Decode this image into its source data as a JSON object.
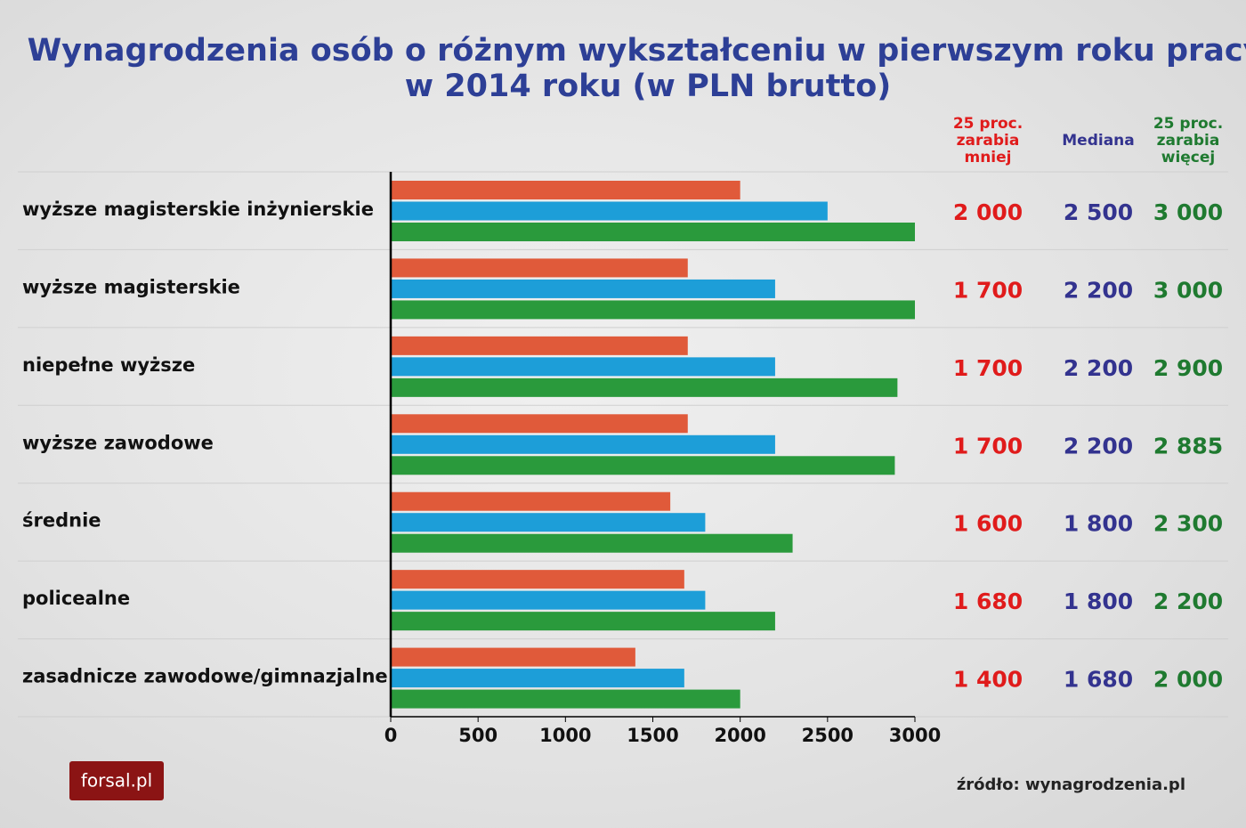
{
  "chart_data": {
    "type": "bar",
    "orientation": "horizontal",
    "title": [
      "Wynagrodzenia osób o różnym wykształceniu w pierwszym roku pracy",
      "w 2014 roku (w PLN brutto)"
    ],
    "categories": [
      "wyższe magisterskie inżynierskie",
      "wyższe magisterskie",
      "niepełne wyższe",
      "wyższe zawodowe",
      "średnie",
      "policealne",
      "zasadnicze zawodowe/gimnazjalne"
    ],
    "series": [
      {
        "name": "25 proc. zarabia mniej",
        "color": "#e05a3a",
        "label_color": "#e01b1b",
        "values": [
          2000,
          1700,
          1700,
          1700,
          1600,
          1680,
          1400
        ],
        "value_labels": [
          "2 000",
          "1 700",
          "1 700",
          "1 700",
          "1 600",
          "1 680",
          "1 400"
        ]
      },
      {
        "name": "Mediana",
        "color": "#1d9ed8",
        "label_color": "#33338f",
        "values": [
          2500,
          2200,
          2200,
          2200,
          1800,
          1800,
          1680
        ],
        "value_labels": [
          "2 500",
          "2 200",
          "2 200",
          "2 200",
          "1 800",
          "1 800",
          "1 680"
        ]
      },
      {
        "name": "25 proc. zarabia więcej",
        "color": "#2a9a3c",
        "label_color": "#1f7a30",
        "values": [
          3000,
          3000,
          2900,
          2885,
          2300,
          2200,
          2000
        ],
        "value_labels": [
          "3 000",
          "3 000",
          "2 900",
          "2 885",
          "2 300",
          "2 200",
          "2 000"
        ]
      }
    ],
    "xlim": [
      0,
      3000
    ],
    "xticks": [
      0,
      500,
      1000,
      1500,
      2000,
      2500,
      3000
    ]
  },
  "source": "źródło: wynagrodzenia.pl",
  "logo": "forsal.pl"
}
